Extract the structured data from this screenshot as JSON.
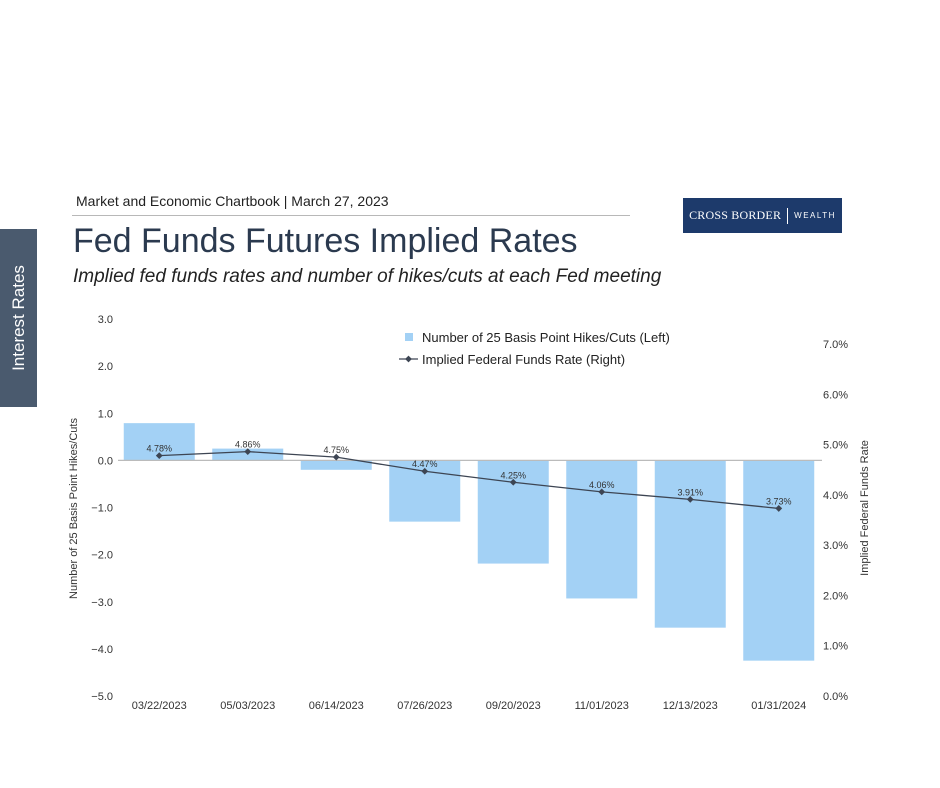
{
  "side_tab": {
    "label": "Interest Rates"
  },
  "header": {
    "report_line": "Market and Economic Chartbook | March 27, 2023",
    "logo": {
      "brand": "CROSS BORDER",
      "wealth": "WEALTH",
      "color": "#1d3a6b"
    },
    "title": "Fed Funds Futures Implied Rates",
    "subtitle": "Implied fed funds rates and number of hikes/cuts at each Fed meeting"
  },
  "chart_data": {
    "type": "bar",
    "categories": [
      "03/22/2023",
      "05/03/2023",
      "06/14/2023",
      "07/26/2023",
      "09/20/2023",
      "11/01/2023",
      "12/13/2023",
      "01/31/2024"
    ],
    "series": [
      {
        "name": "Number of 25 Basis Point Hikes/Cuts (Left)",
        "type": "bar",
        "axis": "left",
        "color": "#a3d1f5",
        "values": [
          0.79,
          0.25,
          -0.2,
          -1.3,
          -2.19,
          -2.93,
          -3.55,
          -4.25
        ]
      },
      {
        "name": "Implied Federal Funds Rate (Right)",
        "type": "line",
        "axis": "right",
        "color": "#3d4553",
        "values": [
          4.78,
          4.86,
          4.75,
          4.47,
          4.25,
          4.06,
          3.91,
          3.73
        ],
        "labels": [
          "4.78%",
          "4.86%",
          "4.75%",
          "4.47%",
          "4.25%",
          "4.06%",
          "3.91%",
          "3.73%"
        ]
      }
    ],
    "y_left": {
      "label": "Number of 25 Basis Point Hikes/Cuts",
      "lim": [
        -5,
        3
      ],
      "ticks": [
        3,
        2,
        1,
        0,
        -1,
        -2,
        -3,
        -4,
        -5
      ],
      "tick_labels": [
        "3.0",
        "2.0",
        "1.0",
        "0.0",
        "−1.0",
        "−2.0",
        "−3.0",
        "−4.0",
        "−5.0"
      ]
    },
    "y_right": {
      "label": "Implied Federal Funds Rate",
      "lim": [
        0,
        7.5
      ],
      "ticks": [
        7,
        6,
        5,
        4,
        3,
        2,
        1,
        0
      ],
      "tick_labels": [
        "7.0%",
        "6.0%",
        "5.0%",
        "4.0%",
        "3.0%",
        "2.0%",
        "1.0%",
        "0.0%"
      ]
    },
    "legend": "top-center",
    "grid": false,
    "zero_line_color": "#bbbbbb"
  }
}
